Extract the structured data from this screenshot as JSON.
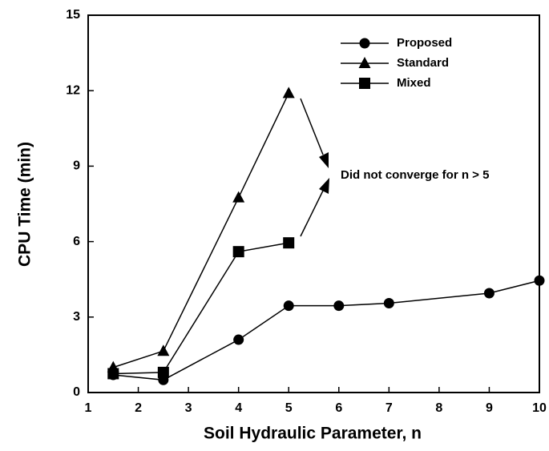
{
  "chart_data": {
    "type": "line",
    "xlabel": "Soil Hydraulic Parameter, n",
    "ylabel": "CPU Time (min)",
    "xlim": [
      1,
      10
    ],
    "xticks": [
      1,
      2,
      3,
      4,
      5,
      6,
      7,
      8,
      9,
      10
    ],
    "ylim": [
      0,
      15
    ],
    "yticks": [
      0,
      3,
      6,
      9,
      12,
      15
    ],
    "annotation": "Did not converge for n > 5",
    "legend": "upper right",
    "series": [
      {
        "name": "Proposed",
        "color": "#000000",
        "marker": "circle",
        "x": [
          1.5,
          2.5,
          4,
          5,
          6,
          7,
          9,
          10
        ],
        "values": [
          0.7,
          0.5,
          2.1,
          3.45,
          3.45,
          3.55,
          3.95,
          4.45
        ]
      },
      {
        "name": "Standard",
        "color": "#000000",
        "marker": "triangle",
        "x": [
          1.5,
          2.5,
          4,
          5
        ],
        "values": [
          1.0,
          1.65,
          7.75,
          11.9
        ]
      },
      {
        "name": "Mixed",
        "color": "#000000",
        "marker": "square",
        "x": [
          1.5,
          2.5,
          4,
          5
        ],
        "values": [
          0.75,
          0.8,
          5.6,
          5.95
        ]
      }
    ]
  }
}
